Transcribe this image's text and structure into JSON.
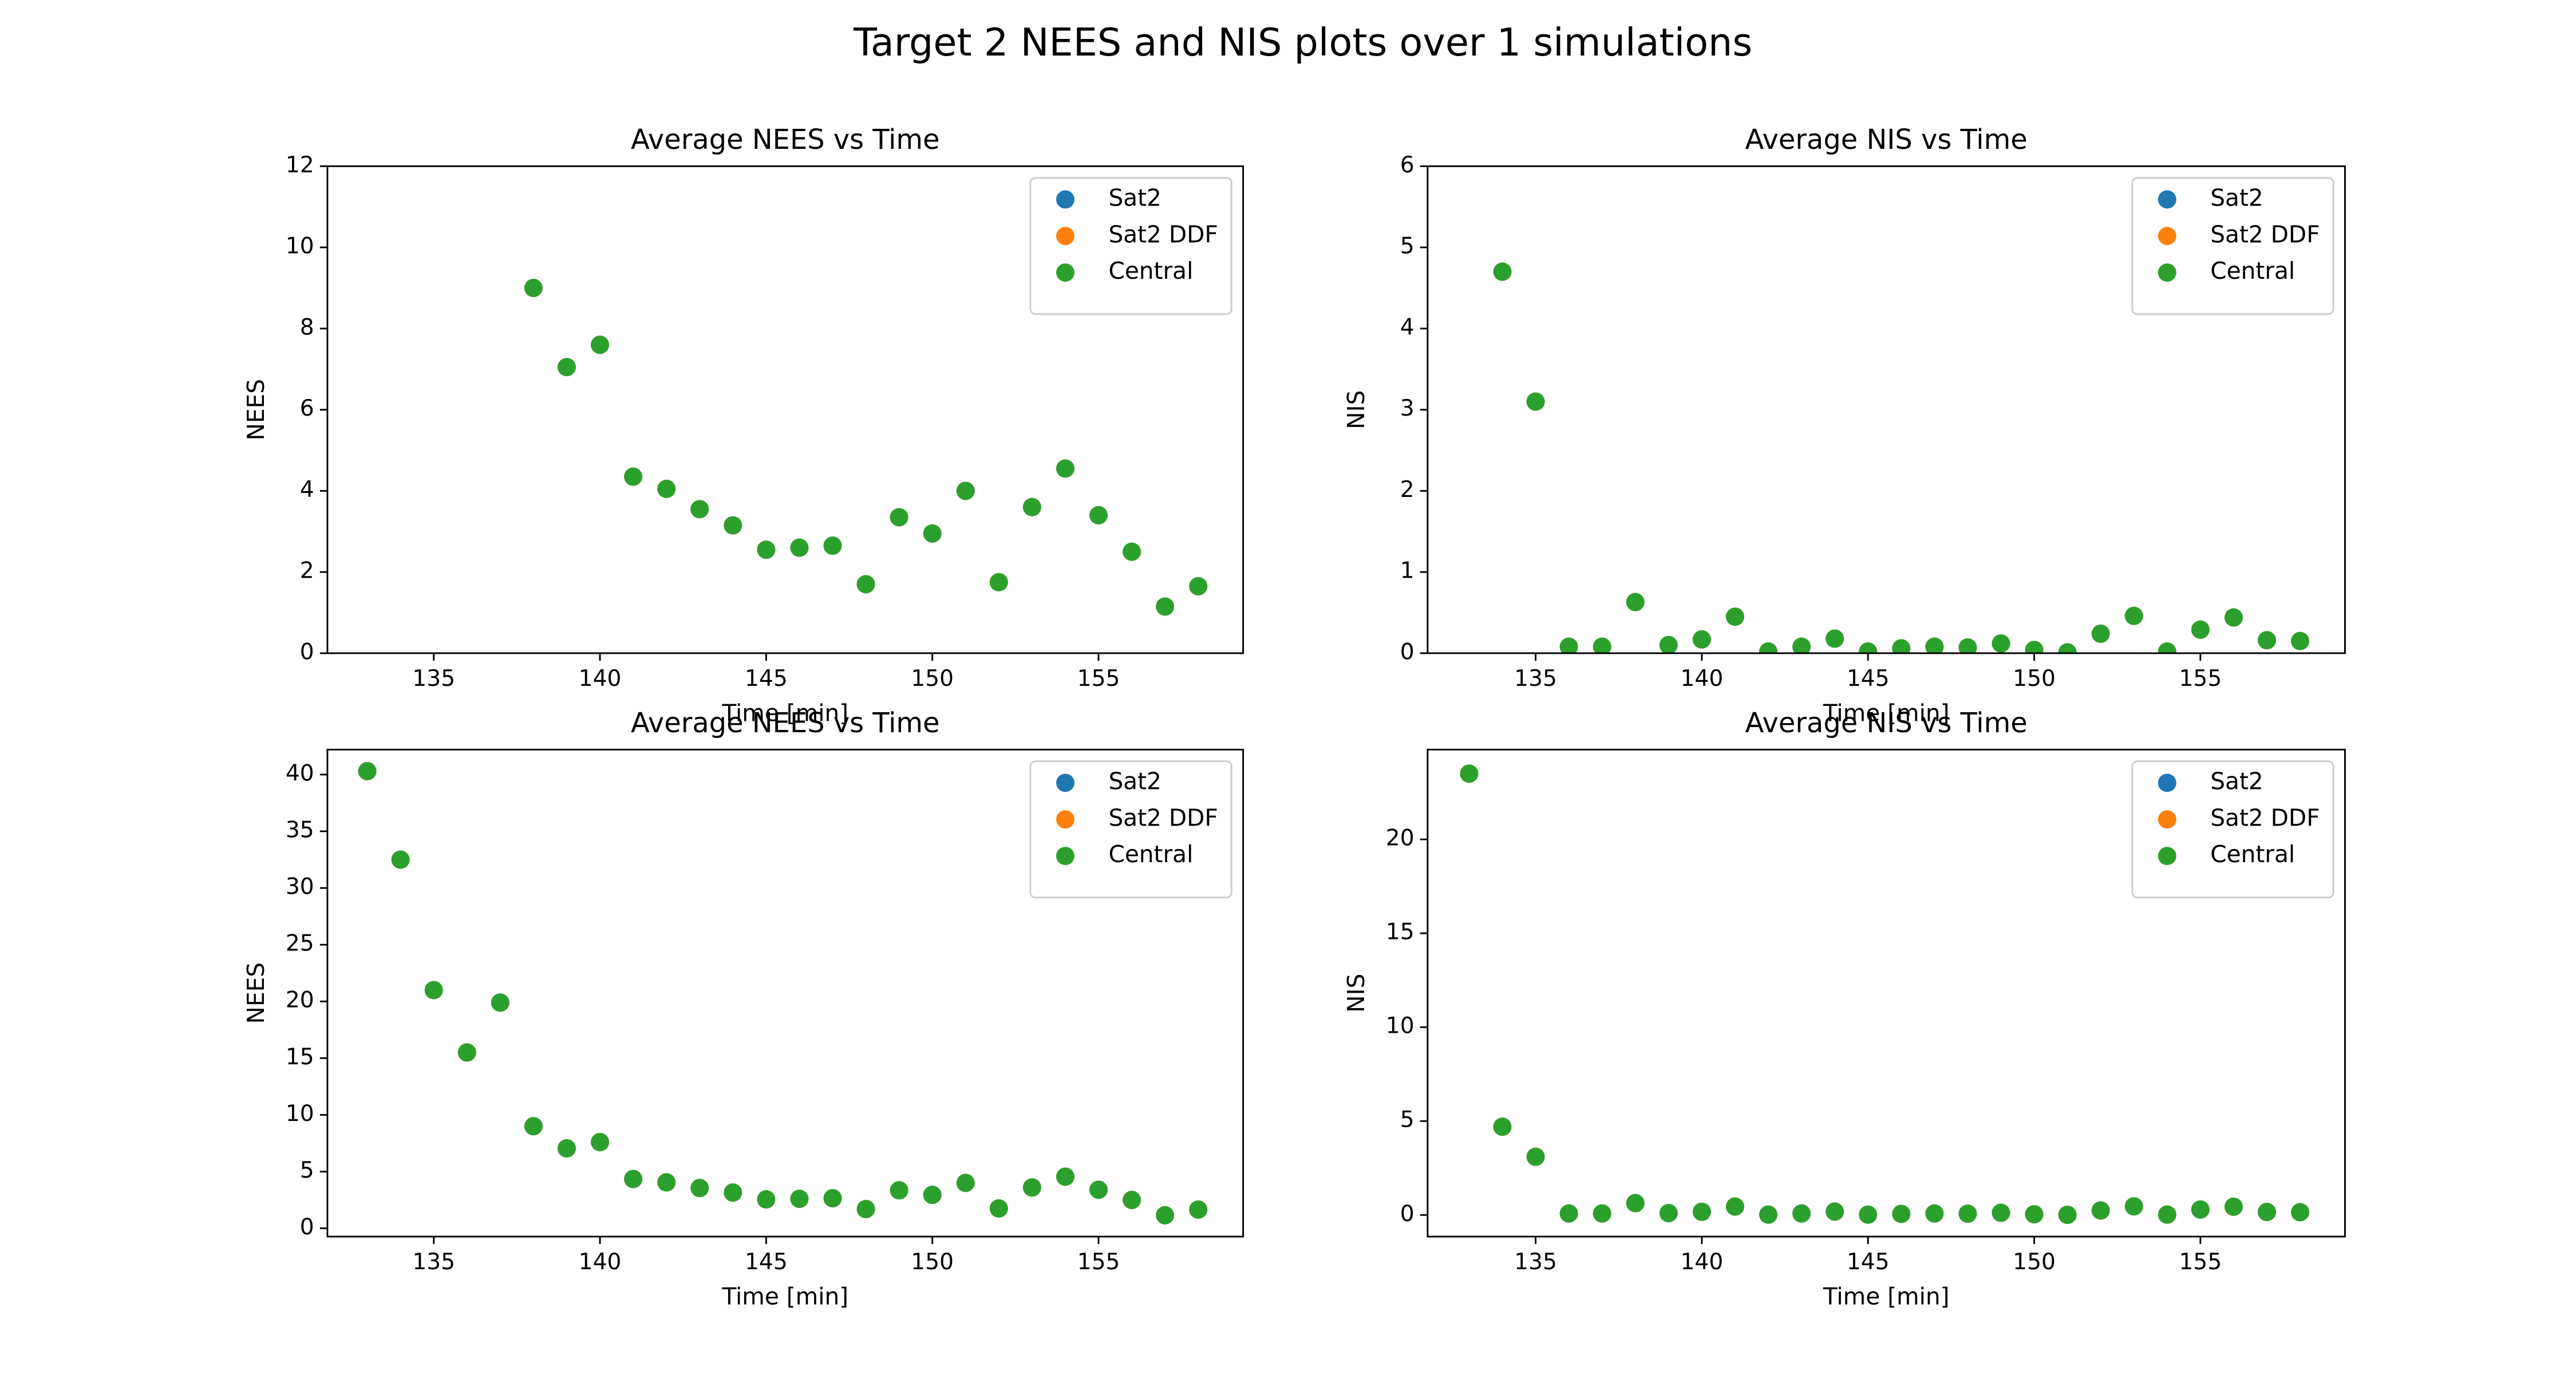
{
  "title": "Target 2 NEES and NIS plots over 1 simulations",
  "chart_data": [
    {
      "type": "scatter",
      "title": "Average NEES vs Time",
      "x_label": "Time [min]",
      "y_label": "NEES",
      "x": [
        138,
        139,
        140,
        141,
        142,
        143,
        144,
        145,
        146,
        147,
        148,
        149,
        150,
        151,
        152,
        153,
        154,
        155,
        156,
        157,
        158
      ],
      "series": [
        {
          "name": "Sat2",
          "color": "#1f77b4",
          "values": [
            9.0,
            7.05,
            7.6,
            4.35,
            4.05,
            3.55,
            3.15,
            2.55,
            2.6,
            2.65,
            1.7,
            3.35,
            2.95,
            4.0,
            1.75,
            3.6,
            4.55,
            3.4,
            2.5,
            1.15,
            1.65
          ]
        },
        {
          "name": "Sat2 DDF",
          "color": "#ff7f0e",
          "values": [
            9.0,
            7.05,
            7.6,
            4.35,
            4.05,
            3.55,
            3.15,
            2.55,
            2.6,
            2.65,
            1.7,
            3.35,
            2.95,
            4.0,
            1.75,
            3.6,
            4.55,
            3.4,
            2.5,
            1.15,
            1.65
          ]
        },
        {
          "name": "Central",
          "color": "#2ca02c",
          "values": [
            9.0,
            7.05,
            7.6,
            4.35,
            4.05,
            3.55,
            3.15,
            2.55,
            2.6,
            2.65,
            1.7,
            3.35,
            2.95,
            4.0,
            1.75,
            3.6,
            4.55,
            3.4,
            2.5,
            1.15,
            1.65
          ]
        }
      ],
      "xlim": [
        131.8,
        159.35
      ],
      "xticks": [
        135,
        140,
        145,
        150,
        155
      ],
      "ylim": [
        0,
        12
      ],
      "yticks": [
        0,
        2,
        4,
        6,
        8,
        10,
        12
      ],
      "legend": "upper right"
    },
    {
      "type": "scatter",
      "title": "Average NIS vs Time",
      "x_label": "Time [min]",
      "y_label": "NIS",
      "x": [
        134,
        135,
        136,
        137,
        138,
        139,
        140,
        141,
        142,
        143,
        144,
        145,
        146,
        147,
        148,
        149,
        150,
        151,
        152,
        153,
        154,
        155,
        156,
        157,
        158
      ],
      "series": [
        {
          "name": "Sat2",
          "color": "#1f77b4",
          "values": [
            4.7,
            3.1,
            0.08,
            0.08,
            0.63,
            0.1,
            0.17,
            0.45,
            0.02,
            0.08,
            0.18,
            0.02,
            0.06,
            0.08,
            0.07,
            0.12,
            0.04,
            0.01,
            0.24,
            0.46,
            0.02,
            0.29,
            0.44,
            0.16,
            0.15
          ]
        },
        {
          "name": "Sat2 DDF",
          "color": "#ff7f0e",
          "values": [
            4.7,
            3.1,
            0.08,
            0.08,
            0.63,
            0.1,
            0.17,
            0.45,
            0.02,
            0.08,
            0.18,
            0.02,
            0.06,
            0.08,
            0.07,
            0.12,
            0.04,
            0.01,
            0.24,
            0.46,
            0.02,
            0.29,
            0.44,
            0.16,
            0.15
          ]
        },
        {
          "name": "Central",
          "color": "#2ca02c",
          "values": [
            4.7,
            3.1,
            0.08,
            0.08,
            0.63,
            0.1,
            0.17,
            0.45,
            0.02,
            0.08,
            0.18,
            0.02,
            0.06,
            0.08,
            0.07,
            0.12,
            0.04,
            0.01,
            0.24,
            0.46,
            0.02,
            0.29,
            0.44,
            0.16,
            0.15
          ]
        }
      ],
      "xlim": [
        131.75,
        159.35
      ],
      "xticks": [
        135,
        140,
        145,
        150,
        155
      ],
      "ylim": [
        0,
        6
      ],
      "yticks": [
        0,
        1,
        2,
        3,
        4,
        5,
        6
      ],
      "legend": "upper right"
    },
    {
      "type": "scatter",
      "title": "Average NEES vs Time",
      "x_label": "Time [min]",
      "y_label": "NEES",
      "x": [
        133,
        134,
        135,
        136,
        137,
        138,
        139,
        140,
        141,
        142,
        143,
        144,
        145,
        146,
        147,
        148,
        149,
        150,
        151,
        152,
        153,
        154,
        155,
        156,
        157,
        158
      ],
      "series": [
        {
          "name": "Sat2",
          "color": "#1f77b4",
          "values": [
            40.3,
            32.5,
            21.0,
            15.5,
            19.9,
            9.0,
            7.05,
            7.6,
            4.35,
            4.05,
            3.55,
            3.15,
            2.55,
            2.6,
            2.65,
            1.7,
            3.35,
            2.95,
            4.0,
            1.75,
            3.6,
            4.55,
            3.4,
            2.5,
            1.15,
            1.65
          ]
        },
        {
          "name": "Sat2 DDF",
          "color": "#ff7f0e",
          "values": [
            40.3,
            32.5,
            21.0,
            15.5,
            19.9,
            9.0,
            7.05,
            7.6,
            4.35,
            4.05,
            3.55,
            3.15,
            2.55,
            2.6,
            2.65,
            1.7,
            3.35,
            2.95,
            4.0,
            1.75,
            3.6,
            4.55,
            3.4,
            2.5,
            1.15,
            1.65
          ]
        },
        {
          "name": "Central",
          "color": "#2ca02c",
          "values": [
            40.3,
            32.5,
            21.0,
            15.5,
            19.9,
            9.0,
            7.05,
            7.6,
            4.35,
            4.05,
            3.55,
            3.15,
            2.55,
            2.6,
            2.65,
            1.7,
            3.35,
            2.95,
            4.0,
            1.75,
            3.6,
            4.55,
            3.4,
            2.5,
            1.15,
            1.65
          ]
        }
      ],
      "xlim": [
        131.8,
        159.35
      ],
      "xticks": [
        135,
        140,
        145,
        150,
        155
      ],
      "ylim": [
        -0.73,
        42.2
      ],
      "yticks": [
        0,
        5,
        10,
        15,
        20,
        25,
        30,
        35,
        40
      ],
      "legend": "upper right"
    },
    {
      "type": "scatter",
      "title": "Average NIS vs Time",
      "x_label": "Time [min]",
      "y_label": "NIS",
      "x": [
        133,
        134,
        135,
        136,
        137,
        138,
        139,
        140,
        141,
        142,
        143,
        144,
        145,
        146,
        147,
        148,
        149,
        150,
        151,
        152,
        153,
        154,
        155,
        156,
        157,
        158
      ],
      "series": [
        {
          "name": "Sat2",
          "color": "#1f77b4",
          "values": [
            23.5,
            4.7,
            3.1,
            0.08,
            0.08,
            0.63,
            0.1,
            0.17,
            0.45,
            0.02,
            0.08,
            0.18,
            0.02,
            0.06,
            0.08,
            0.07,
            0.12,
            0.04,
            0.01,
            0.24,
            0.46,
            0.02,
            0.29,
            0.44,
            0.16,
            0.15
          ]
        },
        {
          "name": "Sat2 DDF",
          "color": "#ff7f0e",
          "values": [
            23.5,
            4.7,
            3.1,
            0.08,
            0.08,
            0.63,
            0.1,
            0.17,
            0.45,
            0.02,
            0.08,
            0.18,
            0.02,
            0.06,
            0.08,
            0.07,
            0.12,
            0.04,
            0.01,
            0.24,
            0.46,
            0.02,
            0.29,
            0.44,
            0.16,
            0.15
          ]
        },
        {
          "name": "Central",
          "color": "#2ca02c",
          "values": [
            23.5,
            4.7,
            3.1,
            0.08,
            0.08,
            0.63,
            0.1,
            0.17,
            0.45,
            0.02,
            0.08,
            0.18,
            0.02,
            0.06,
            0.08,
            0.07,
            0.12,
            0.04,
            0.01,
            0.24,
            0.46,
            0.02,
            0.29,
            0.44,
            0.16,
            0.15
          ]
        }
      ],
      "xlim": [
        131.75,
        159.35
      ],
      "xticks": [
        135,
        140,
        145,
        150,
        155
      ],
      "ylim": [
        -1.15,
        24.78
      ],
      "yticks": [
        0,
        5,
        10,
        15,
        20
      ],
      "legend": "upper right"
    }
  ]
}
